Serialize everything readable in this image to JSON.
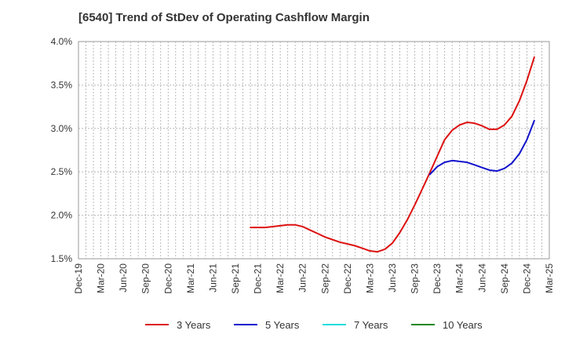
{
  "chart_data": {
    "type": "line",
    "title": "[6540]  Trend of StDev of Operating Cashflow Margin",
    "xlabel": "",
    "ylabel": "",
    "ylim": [
      1.5,
      4.0
    ],
    "y_ticks": [
      "1.5%",
      "2.0%",
      "2.5%",
      "3.0%",
      "3.5%",
      "4.0%"
    ],
    "y_tick_values": [
      1.5,
      2.0,
      2.5,
      3.0,
      3.5,
      4.0
    ],
    "x_categories": [
      "Dec-19",
      "Mar-20",
      "Jun-20",
      "Sep-20",
      "Dec-20",
      "Mar-21",
      "Jun-21",
      "Sep-21",
      "Dec-21",
      "Mar-22",
      "Jun-22",
      "Sep-22",
      "Dec-22",
      "Mar-23",
      "Jun-23",
      "Sep-23",
      "Dec-23",
      "Mar-24",
      "Jun-24",
      "Sep-24",
      "Dec-24",
      "Mar-25"
    ],
    "grid": true,
    "legend_placement": "bottom",
    "series": [
      {
        "name": "3 Years",
        "color": "#dd1111",
        "points": [
          [
            7.67,
            1.86
          ],
          [
            8.0,
            1.86
          ],
          [
            8.33,
            1.86
          ],
          [
            8.67,
            1.87
          ],
          [
            9.0,
            1.88
          ],
          [
            9.33,
            1.89
          ],
          [
            9.67,
            1.89
          ],
          [
            10.0,
            1.87
          ],
          [
            10.33,
            1.83
          ],
          [
            10.67,
            1.79
          ],
          [
            11.0,
            1.75
          ],
          [
            11.33,
            1.72
          ],
          [
            11.67,
            1.69
          ],
          [
            12.0,
            1.67
          ],
          [
            12.33,
            1.65
          ],
          [
            12.67,
            1.62
          ],
          [
            13.0,
            1.59
          ],
          [
            13.33,
            1.58
          ],
          [
            13.67,
            1.61
          ],
          [
            14.0,
            1.68
          ],
          [
            14.33,
            1.8
          ],
          [
            14.67,
            1.95
          ],
          [
            15.0,
            2.12
          ],
          [
            15.33,
            2.3
          ],
          [
            15.67,
            2.49
          ],
          [
            16.0,
            2.68
          ],
          [
            16.33,
            2.87
          ],
          [
            16.67,
            2.98
          ],
          [
            17.0,
            3.04
          ],
          [
            17.33,
            3.07
          ],
          [
            17.67,
            3.06
          ],
          [
            18.0,
            3.03
          ],
          [
            18.33,
            2.99
          ],
          [
            18.67,
            2.99
          ],
          [
            19.0,
            3.04
          ],
          [
            19.33,
            3.14
          ],
          [
            19.67,
            3.32
          ],
          [
            20.0,
            3.55
          ],
          [
            20.33,
            3.82
          ]
        ]
      },
      {
        "name": "5 Years",
        "color": "#1111cc",
        "points": [
          [
            15.67,
            2.47
          ],
          [
            16.0,
            2.56
          ],
          [
            16.33,
            2.61
          ],
          [
            16.67,
            2.63
          ],
          [
            17.0,
            2.62
          ],
          [
            17.33,
            2.61
          ],
          [
            17.67,
            2.58
          ],
          [
            18.0,
            2.55
          ],
          [
            18.33,
            2.52
          ],
          [
            18.67,
            2.51
          ],
          [
            19.0,
            2.54
          ],
          [
            19.33,
            2.6
          ],
          [
            19.67,
            2.71
          ],
          [
            20.0,
            2.87
          ],
          [
            20.33,
            3.09
          ]
        ]
      },
      {
        "name": "7 Years",
        "color": "#22dddd",
        "points": []
      },
      {
        "name": "10 Years",
        "color": "#228822",
        "points": []
      }
    ]
  }
}
